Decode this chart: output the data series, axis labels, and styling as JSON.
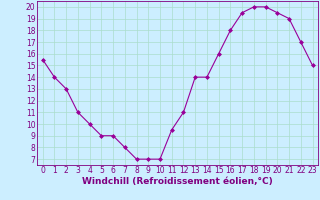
{
  "x": [
    0,
    1,
    2,
    3,
    4,
    5,
    6,
    7,
    8,
    9,
    10,
    11,
    12,
    13,
    14,
    15,
    16,
    17,
    18,
    19,
    20,
    21,
    22,
    23
  ],
  "y": [
    15.5,
    14.0,
    13.0,
    11.0,
    10.0,
    9.0,
    9.0,
    8.0,
    7.0,
    7.0,
    7.0,
    9.5,
    11.0,
    14.0,
    14.0,
    16.0,
    18.0,
    19.5,
    20.0,
    20.0,
    19.5,
    19.0,
    17.0,
    15.0
  ],
  "line_color": "#990099",
  "marker": "D",
  "marker_size": 2.0,
  "bg_color": "#cceeff",
  "grid_color": "#aaddcc",
  "xlabel": "Windchill (Refroidissement éolien,°C)",
  "tick_color": "#800080",
  "yticks": [
    7,
    8,
    9,
    10,
    11,
    12,
    13,
    14,
    15,
    16,
    17,
    18,
    19,
    20
  ],
  "xticks": [
    0,
    1,
    2,
    3,
    4,
    5,
    6,
    7,
    8,
    9,
    10,
    11,
    12,
    13,
    14,
    15,
    16,
    17,
    18,
    19,
    20,
    21,
    22,
    23
  ],
  "ylim": [
    6.5,
    20.5
  ],
  "xlim": [
    -0.5,
    23.5
  ],
  "tick_fontsize": 5.5,
  "xlabel_fontsize": 6.5
}
